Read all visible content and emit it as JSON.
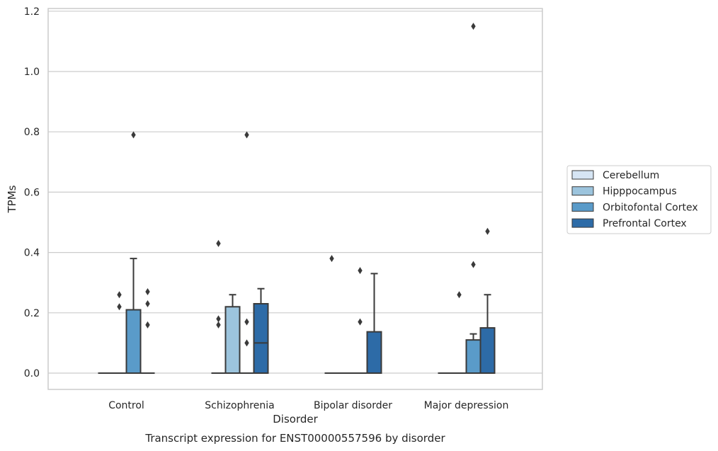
{
  "chart_data": {
    "type": "box",
    "caption": "Transcript expression for ENST00000557596 by disorder",
    "xlabel": "Disorder",
    "ylabel": "TPMs",
    "ylim": [
      -0.055,
      1.21
    ],
    "yticks": [
      "0.0",
      "0.2",
      "0.4",
      "0.6",
      "0.8",
      "1.0",
      "1.2"
    ],
    "grid": true,
    "legend_position": "right",
    "categories": [
      "Control",
      "Schizophrenia",
      "Bipolar disorder",
      "Major depression"
    ],
    "series": [
      {
        "name": "Cerebellum",
        "color": "#d6e5f4",
        "boxes": [
          {
            "q1": 0,
            "median": 0,
            "q3": 0,
            "whislo": 0,
            "whishi": 0,
            "fliers": []
          },
          {
            "q1": 0,
            "median": 0,
            "q3": 0,
            "whislo": 0,
            "whishi": 0,
            "fliers": [
              0.43,
              0.18,
              0.16
            ]
          },
          {
            "q1": 0,
            "median": 0,
            "q3": 0,
            "whislo": 0,
            "whishi": 0,
            "fliers": [
              0.38
            ]
          },
          {
            "q1": 0,
            "median": 0,
            "q3": 0,
            "whislo": 0,
            "whishi": 0,
            "fliers": []
          }
        ]
      },
      {
        "name": "Hipppocampus",
        "color": "#9cc4dd",
        "boxes": [
          {
            "q1": 0,
            "median": 0,
            "q3": 0,
            "whislo": 0,
            "whishi": 0,
            "fliers": [
              0.26,
              0.22
            ]
          },
          {
            "q1": 0,
            "median": 0,
            "q3": 0.22,
            "whislo": 0,
            "whishi": 0.26,
            "fliers": []
          },
          {
            "q1": 0,
            "median": 0,
            "q3": 0,
            "whislo": 0,
            "whishi": 0,
            "fliers": []
          },
          {
            "q1": 0,
            "median": 0,
            "q3": 0,
            "whislo": 0,
            "whishi": 0,
            "fliers": [
              0.26
            ]
          }
        ]
      },
      {
        "name": "Orbitofontal Cortex",
        "color": "#5a9bc9",
        "boxes": [
          {
            "q1": 0,
            "median": 0,
            "q3": 0.21,
            "whislo": 0,
            "whishi": 0.38,
            "fliers": [
              0.79
            ]
          },
          {
            "q1": 0,
            "median": 0,
            "q3": 0,
            "whislo": 0,
            "whishi": 0,
            "fliers": [
              0.79,
              0.17,
              0.1
            ]
          },
          {
            "q1": 0,
            "median": 0,
            "q3": 0,
            "whislo": 0,
            "whishi": 0,
            "fliers": [
              0.34,
              0.17
            ]
          },
          {
            "q1": 0,
            "median": 0,
            "q3": 0.11,
            "whislo": 0,
            "whishi": 0.13,
            "fliers": [
              1.15,
              0.36
            ]
          }
        ]
      },
      {
        "name": "Prefrontal Cortex",
        "color": "#2d6ba7",
        "boxes": [
          {
            "q1": 0,
            "median": 0,
            "q3": 0,
            "whislo": 0,
            "whishi": 0,
            "fliers": [
              0.27,
              0.23,
              0.16
            ]
          },
          {
            "q1": 0,
            "median": 0.1,
            "q3": 0.23,
            "whislo": 0,
            "whishi": 0.28,
            "fliers": []
          },
          {
            "q1": 0,
            "median": 0,
            "q3": 0.137,
            "whislo": 0,
            "whishi": 0.33,
            "fliers": []
          },
          {
            "q1": 0,
            "median": 0,
            "q3": 0.15,
            "whislo": 0,
            "whishi": 0.26,
            "fliers": [
              0.47
            ]
          }
        ]
      }
    ]
  }
}
